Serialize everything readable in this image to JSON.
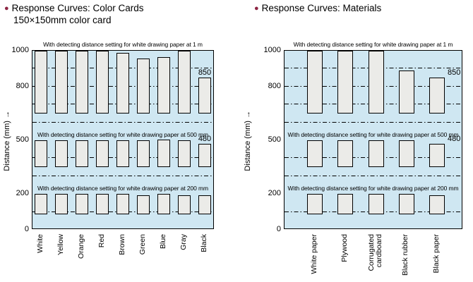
{
  "icons": {
    "bullet": "●",
    "y_axis_arrow": "→"
  },
  "colors": {
    "accent_bullet": "#8d2543",
    "plot_fill": "#cfe7f2",
    "bar_fill": "#ebebe8",
    "line": "#000000"
  },
  "chart_data": [
    {
      "type": "bar",
      "title": "Response Curves: Color Cards",
      "subtitle": "150×150mm color card",
      "ylabel": "Distance (mm)",
      "ylim": [
        0,
        1000
      ],
      "yticks": [
        1000,
        800,
        500,
        200,
        0
      ],
      "gridlines": [
        900,
        800,
        700,
        400,
        100
      ],
      "band_separators": [
        600,
        300
      ],
      "legend": "none",
      "categories": [
        "White",
        "Yellow",
        "Orange",
        "Red",
        "Brown",
        "Green",
        "Blue",
        "Gray",
        "Black"
      ],
      "bands": [
        {
          "header": "With detecting distance setting for white drawing paper at 1 m",
          "setting_mm": 1000,
          "bar_bottom": 650,
          "values": [
            1000,
            1000,
            1000,
            1000,
            990,
            955,
            965,
            1000,
            850
          ],
          "annotation": {
            "category_index": 8,
            "text": "850",
            "position": "above"
          }
        },
        {
          "header": "With detecting distance setting for white drawing paper at 500 mm",
          "setting_mm": 500,
          "bar_bottom": 350,
          "values": [
            500,
            500,
            500,
            500,
            500,
            500,
            505,
            500,
            480
          ],
          "annotation": {
            "category_index": 8,
            "text": "480",
            "position": "above"
          }
        },
        {
          "header": "With detecting distance setting for white drawing paper at 200 mm",
          "setting_mm": 200,
          "bar_bottom": 85,
          "values": [
            200,
            200,
            200,
            200,
            200,
            195,
            200,
            195,
            195
          ],
          "annotation": null
        }
      ]
    },
    {
      "type": "bar",
      "title": "Response Curves: Materials",
      "subtitle": "",
      "ylabel": "Distance (mm)",
      "ylim": [
        0,
        1000
      ],
      "yticks": [
        1000,
        800,
        500,
        200,
        0
      ],
      "gridlines": [
        900,
        800,
        700,
        400,
        100
      ],
      "band_separators": [
        600,
        300
      ],
      "legend": "none",
      "categories": [
        "White paper",
        "Plywood",
        "Corrugated\ncardboard",
        "Black rubber",
        "Black paper"
      ],
      "bands": [
        {
          "header": "With detecting distance setting for white drawing paper at 1 m",
          "setting_mm": 1000,
          "bar_bottom": 650,
          "values": [
            1000,
            1000,
            1000,
            890,
            850
          ],
          "annotation": {
            "category_index": 4,
            "text": "850",
            "position": "right"
          }
        },
        {
          "header": "With detecting distance setting for white drawing paper at 500 mm",
          "setting_mm": 500,
          "bar_bottom": 350,
          "values": [
            500,
            500,
            500,
            500,
            480
          ],
          "annotation": {
            "category_index": 4,
            "text": "480",
            "position": "right"
          }
        },
        {
          "header": "With detecting distance setting for white drawing paper at 200 mm",
          "setting_mm": 200,
          "bar_bottom": 85,
          "values": [
            200,
            200,
            200,
            200,
            195
          ],
          "annotation": null
        }
      ]
    }
  ]
}
